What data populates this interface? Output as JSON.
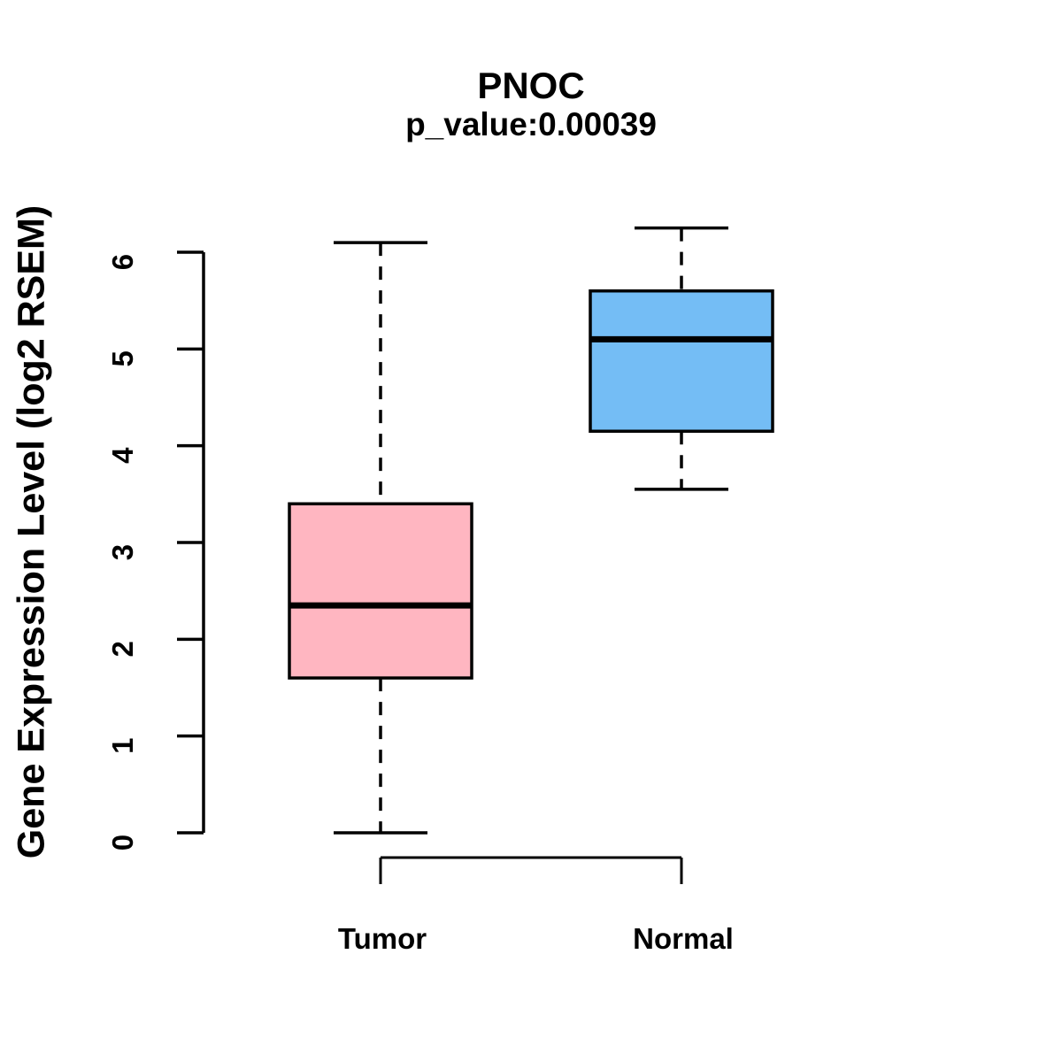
{
  "page": {
    "background_color": "#ffffff"
  },
  "chart_data": {
    "type": "boxplot",
    "title": "PNOC",
    "subtitle": "p_value:0.00039",
    "ylabel": "Gene Expression Level (log2 RSEM)",
    "xlabel": "",
    "categories": [
      "Tumor",
      "Normal"
    ],
    "yticks": [
      0,
      1,
      2,
      3,
      4,
      5,
      6
    ],
    "ylim": [
      0,
      6.3
    ],
    "grid": false,
    "legend": "none",
    "axis_color": "#000000",
    "whisker_line_style": "dashed",
    "series": [
      {
        "name": "Tumor",
        "fill_color": "#FFB6C1",
        "border_color": "#000000",
        "whisker_low": 0.0,
        "q1": 1.6,
        "median": 2.35,
        "q3": 3.4,
        "whisker_high": 6.1
      },
      {
        "name": "Normal",
        "fill_color": "#74BDF5",
        "border_color": "#000000",
        "whisker_low": 3.55,
        "q1": 4.15,
        "median": 5.1,
        "q3": 5.6,
        "whisker_high": 6.25
      }
    ]
  }
}
